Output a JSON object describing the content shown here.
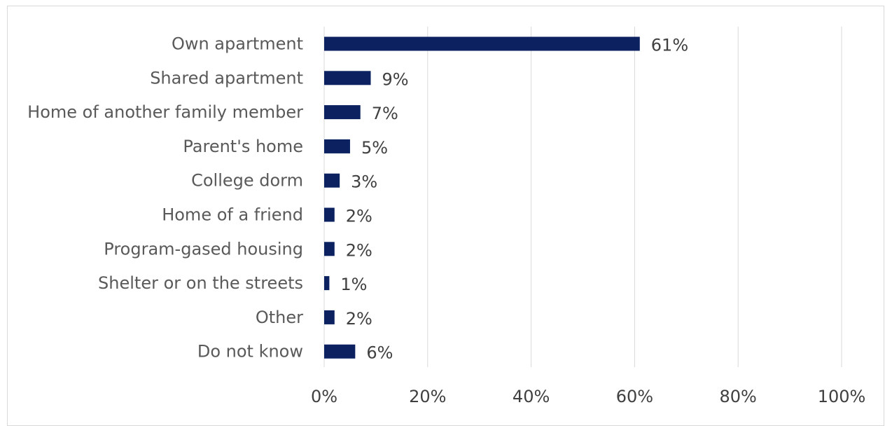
{
  "chart_data": {
    "type": "bar",
    "orientation": "horizontal",
    "categories": [
      "Own apartment",
      "Shared apartment",
      "Home of another family member",
      "Parent's home",
      "College dorm",
      "Home of a friend",
      "Program-gased housing",
      "Shelter or on the streets",
      "Other",
      "Do not know"
    ],
    "values": [
      61,
      9,
      7,
      5,
      3,
      2,
      2,
      1,
      2,
      6
    ],
    "data_labels": [
      "61%",
      "9%",
      "7%",
      "5%",
      "3%",
      "2%",
      "2%",
      "1%",
      "2%",
      "6%"
    ],
    "x_ticks": [
      "0%",
      "20%",
      "40%",
      "60%",
      "80%",
      "100%"
    ],
    "xlim": [
      0,
      100
    ],
    "grid": "vertical",
    "bar_color": "#0b2160",
    "title": "",
    "xlabel": "",
    "ylabel": ""
  }
}
